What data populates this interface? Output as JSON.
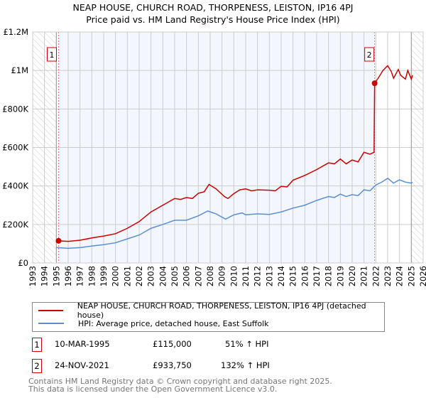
{
  "chart_data": {
    "type": "line",
    "title": "NEAP HOUSE, CHURCH ROAD, THORPENESS, LEISTON, IP16 4PJ",
    "subtitle": "Price paid vs. HM Land Registry's House Price Index (HPI)",
    "xlim": [
      1993,
      2026
    ],
    "ylim": [
      0,
      1200000
    ],
    "x_ticks": [
      "1993",
      "1994",
      "1995",
      "1996",
      "1997",
      "1998",
      "1999",
      "2000",
      "2001",
      "2002",
      "2003",
      "2004",
      "2005",
      "2006",
      "2007",
      "2008",
      "2009",
      "2010",
      "2011",
      "2012",
      "2013",
      "2014",
      "2015",
      "2016",
      "2017",
      "2018",
      "2019",
      "2020",
      "2021",
      "2022",
      "2023",
      "2024",
      "2025",
      "2026"
    ],
    "y_ticks": [
      {
        "v": 0,
        "l": "£0"
      },
      {
        "v": 200000,
        "l": "£200K"
      },
      {
        "v": 400000,
        "l": "£400K"
      },
      {
        "v": 600000,
        "l": "£600K"
      },
      {
        "v": 800000,
        "l": "£800K"
      },
      {
        "v": 1000000,
        "l": "£1M"
      },
      {
        "v": 1200000,
        "l": "£1.2M"
      }
    ],
    "grid": true,
    "hatched_before": 1995.0,
    "hatched_after": 2025.0,
    "series": [
      {
        "name": "NEAP HOUSE, CHURCH ROAD, THORPENESS, LEISTON, IP16 4PJ (detached house)",
        "color": "#cc0000",
        "x": [
          1995.19,
          1996,
          1997,
          1998,
          1999,
          2000,
          2001,
          2002,
          2003,
          2004,
          2005,
          2005.5,
          2006,
          2006.5,
          2007,
          2007.5,
          2007.9,
          2008.5,
          2009.2,
          2009.5,
          2010,
          2010.5,
          2011,
          2011.5,
          2012,
          2013,
          2013.5,
          2014,
          2014.5,
          2015,
          2016,
          2017,
          2018,
          2018.5,
          2019,
          2019.5,
          2020,
          2020.5,
          2021,
          2021.5,
          2021.85,
          2021.9,
          2022.2,
          2022.6,
          2023,
          2023.3,
          2023.5,
          2023.9,
          2024.1,
          2024.5,
          2024.7,
          2025,
          2025.1
        ],
        "y": [
          115000,
          112000,
          118000,
          130000,
          140000,
          152000,
          180000,
          215000,
          265000,
          300000,
          335000,
          330000,
          340000,
          335000,
          362000,
          370000,
          408000,
          385000,
          345000,
          335000,
          360000,
          380000,
          385000,
          375000,
          380000,
          378000,
          375000,
          398000,
          395000,
          430000,
          455000,
          485000,
          520000,
          515000,
          540000,
          515000,
          535000,
          525000,
          575000,
          565000,
          575000,
          933750,
          960000,
          1000000,
          1025000,
          995000,
          960000,
          1005000,
          975000,
          955000,
          1000000,
          955000,
          975000
        ]
      },
      {
        "name": "HPI: Average price, detached house, East Suffolk",
        "color": "#5b8fd4",
        "x": [
          1995,
          1996,
          1997,
          1998,
          1999,
          2000,
          2001,
          2002,
          2003,
          2004,
          2005,
          2006,
          2007,
          2007.8,
          2008.5,
          2009.3,
          2010,
          2010.7,
          2011,
          2012,
          2013,
          2014,
          2015,
          2016,
          2017,
          2018,
          2018.5,
          2019,
          2019.5,
          2020,
          2020.5,
          2021,
          2021.5,
          2022,
          2022.5,
          2023,
          2023.5,
          2024,
          2024.5,
          2025,
          2025.1
        ],
        "y": [
          80000,
          76000,
          80000,
          88000,
          95000,
          105000,
          125000,
          145000,
          180000,
          200000,
          222000,
          222000,
          245000,
          270000,
          255000,
          228000,
          250000,
          260000,
          250000,
          255000,
          252000,
          265000,
          285000,
          300000,
          325000,
          345000,
          340000,
          358000,
          345000,
          355000,
          350000,
          380000,
          375000,
          405000,
          420000,
          440000,
          415000,
          432000,
          420000,
          415000,
          420000
        ]
      }
    ],
    "sales": [
      {
        "label": "1",
        "x": 1995.19,
        "date": "10-MAR-1995",
        "price": 115000,
        "price_text": "£115,000",
        "hpi_text": "51% ↑ HPI"
      },
      {
        "label": "2",
        "x": 2021.9,
        "date": "24-NOV-2021",
        "price": 933750,
        "price_text": "£933,750",
        "hpi_text": "132% ↑ HPI"
      }
    ]
  },
  "footer": {
    "line1": "Contains HM Land Registry data © Crown copyright and database right 2025.",
    "line2": "This data is licensed under the Open Government Licence v3.0."
  }
}
